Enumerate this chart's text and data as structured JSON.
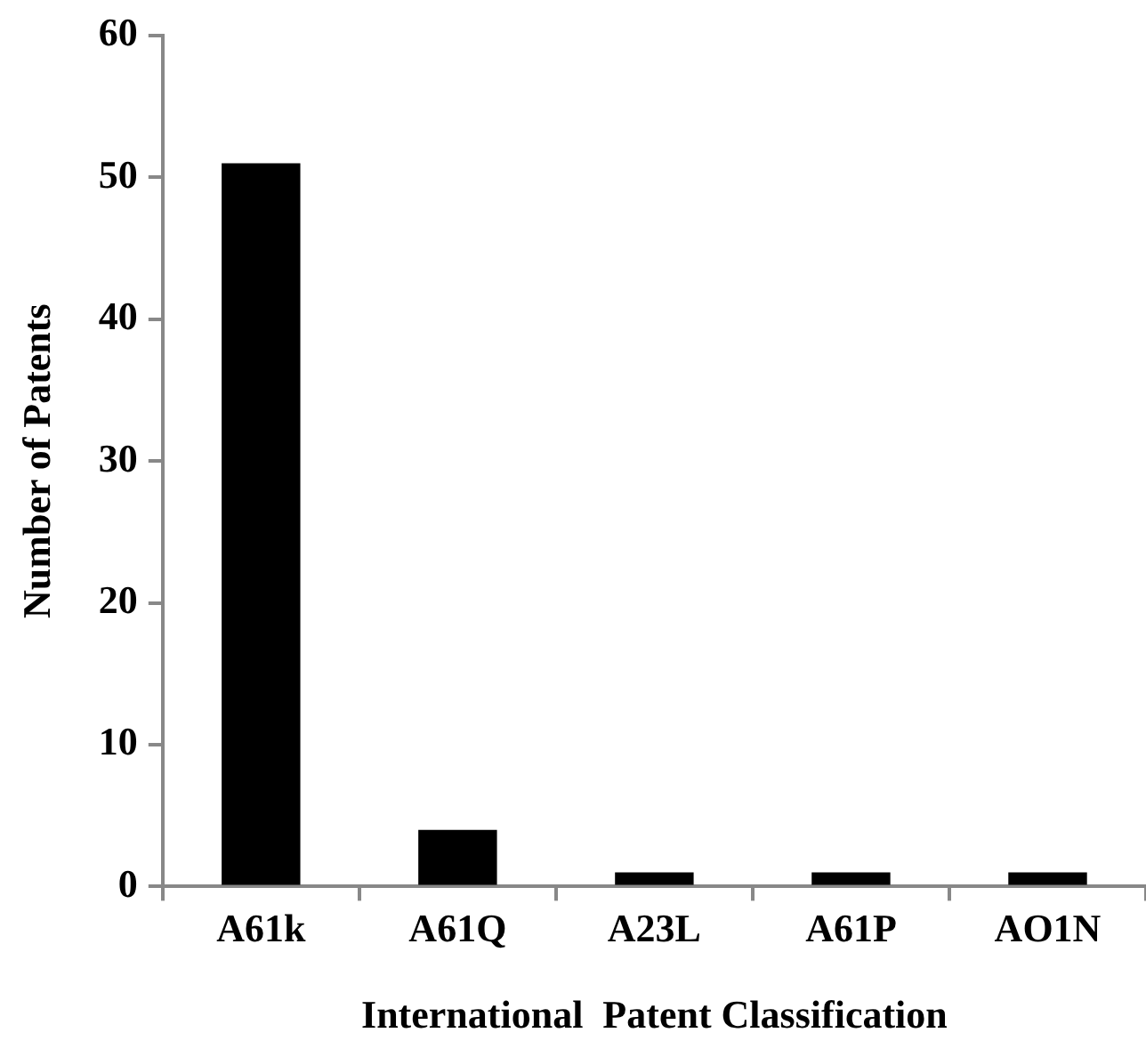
{
  "chart_data": {
    "type": "bar",
    "xlabel": "International  Patent Classification",
    "ylabel": "Number of Patents",
    "categories": [
      "A61k",
      "A61Q",
      "A23L",
      "A61P",
      "AO1N"
    ],
    "values": [
      51,
      4,
      1,
      1,
      1
    ],
    "color": "#000000",
    "ylim": [
      0,
      60
    ],
    "yticks": [
      0,
      10,
      20,
      30,
      40,
      50,
      60
    ],
    "grid": false,
    "legend": false
  }
}
